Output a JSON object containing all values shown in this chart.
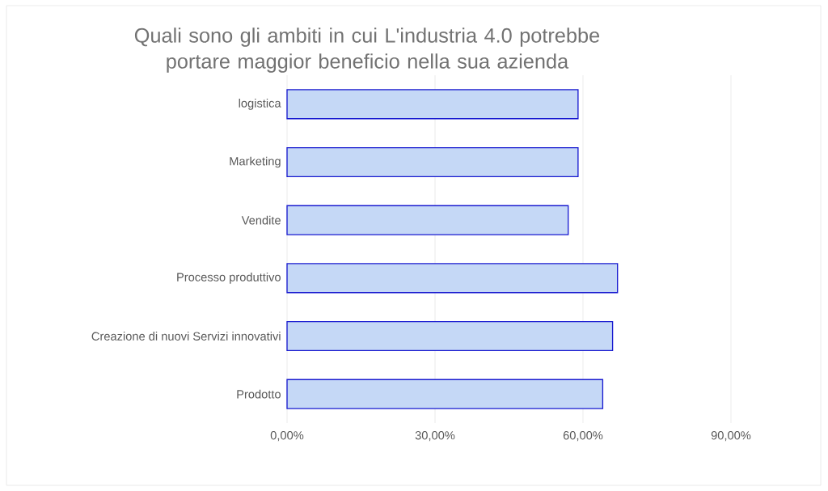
{
  "chart_data": {
    "type": "bar",
    "orientation": "horizontal",
    "title": "Quali sono gli ambiti in cui L'industria 4.0 potrebbe portare maggior beneficio nella sua azienda",
    "categories": [
      "logistica",
      "Marketing",
      "Vendite",
      "Processo produttivo",
      "Creazione di nuovi Servizi innovativi",
      "Prodotto"
    ],
    "values": [
      59,
      59,
      57,
      67,
      66,
      64
    ],
    "color": "#c5d8f6",
    "xlim": [
      0,
      90
    ],
    "xticks": [
      {
        "value": 0,
        "label": "0,00%"
      },
      {
        "value": 30,
        "label": "30,00%"
      },
      {
        "value": 60,
        "label": "60,00%"
      },
      {
        "value": 90,
        "label": "90,00%"
      }
    ],
    "grid": "x"
  }
}
